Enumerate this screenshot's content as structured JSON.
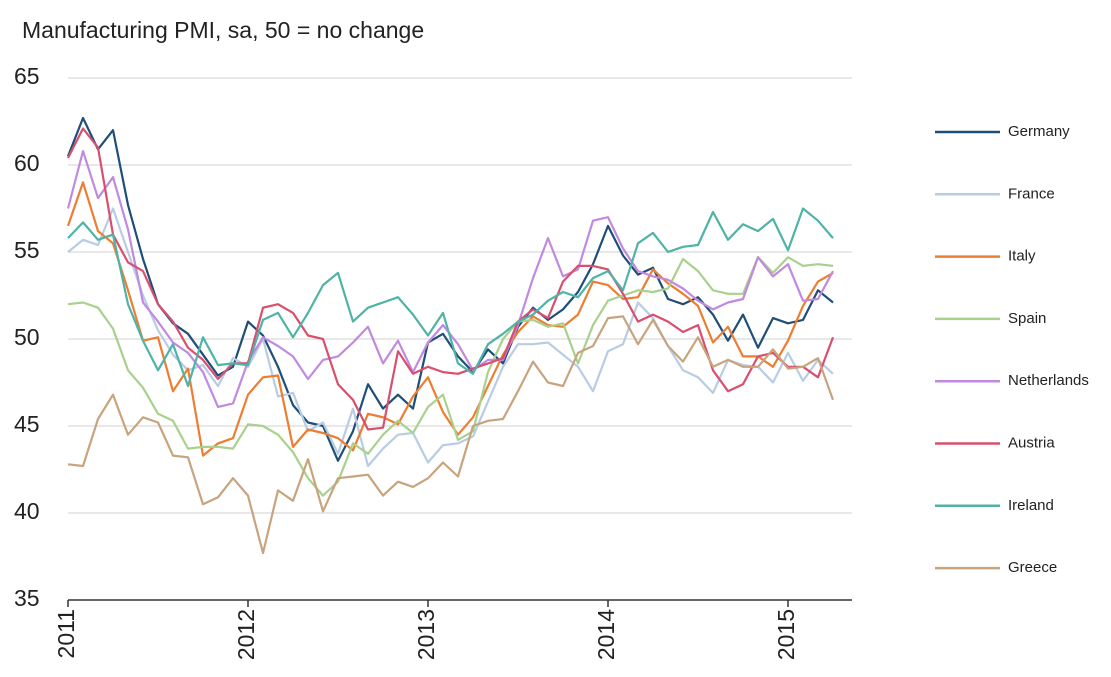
{
  "chart_data": {
    "type": "line",
    "title": "Manufacturing PMI, sa, 50 = no change",
    "x": [
      2011,
      2011.0833,
      2011.1667,
      2011.25,
      2011.3333,
      2011.4167,
      2011.5,
      2011.5833,
      2011.6667,
      2011.75,
      2011.8333,
      2011.9167,
      2012,
      2012.0833,
      2012.1667,
      2012.25,
      2012.3333,
      2012.4167,
      2012.5,
      2012.5833,
      2012.6667,
      2012.75,
      2012.8333,
      2012.9167,
      2013,
      2013.0833,
      2013.1667,
      2013.25,
      2013.3333,
      2013.4167,
      2013.5,
      2013.5833,
      2013.6667,
      2013.75,
      2013.8333,
      2013.9167,
      2014,
      2014.0833,
      2014.1667,
      2014.25,
      2014.3333,
      2014.4167,
      2014.5,
      2014.5833,
      2014.6667,
      2014.75,
      2014.8333,
      2014.9167,
      2015,
      2015.0833,
      2015.1667,
      2015.25
    ],
    "xlim": [
      2011,
      2015.3333
    ],
    "xticks": [
      2011,
      2012,
      2013,
      2014,
      2015
    ],
    "ylim": [
      35,
      65
    ],
    "yticks": [
      35,
      40,
      45,
      50,
      55,
      60,
      65
    ],
    "grid": true,
    "legend": "right",
    "series": [
      {
        "name": "Germany",
        "color": "#1f4e79",
        "values": [
          60.5,
          62.7,
          60.9,
          62.0,
          57.7,
          54.6,
          52.0,
          50.9,
          50.3,
          49.1,
          47.9,
          48.4,
          51.0,
          50.2,
          48.4,
          46.2,
          45.2,
          45.0,
          43.0,
          44.7,
          47.4,
          46.0,
          46.8,
          46.0,
          49.8,
          50.3,
          49.0,
          48.1,
          49.4,
          48.6,
          50.7,
          51.8,
          51.1,
          51.7,
          52.7,
          54.3,
          56.5,
          54.8,
          53.7,
          54.1,
          52.3,
          52.0,
          52.4,
          51.4,
          49.9,
          51.4,
          49.5,
          51.2,
          50.9,
          51.1,
          52.8,
          52.1
        ]
      },
      {
        "name": "France",
        "color": "#b8cce4",
        "values": [
          55.0,
          55.7,
          55.4,
          57.5,
          55.0,
          52.5,
          50.5,
          49.1,
          48.2,
          48.5,
          47.3,
          48.9,
          48.4,
          50.0,
          46.7,
          46.9,
          44.7,
          45.2,
          43.4,
          46.0,
          42.7,
          43.7,
          44.5,
          44.6,
          42.9,
          43.9,
          44.0,
          44.4,
          46.4,
          48.4,
          49.7,
          49.7,
          49.8,
          49.1,
          48.4,
          47.0,
          49.3,
          49.7,
          52.1,
          51.2,
          49.6,
          48.2,
          47.8,
          46.9,
          48.8,
          48.5,
          48.4,
          47.5,
          49.2,
          47.6,
          48.8,
          48.0
        ]
      },
      {
        "name": "Italy",
        "color": "#ed7d31",
        "values": [
          56.5,
          59.0,
          56.2,
          55.5,
          52.8,
          49.9,
          50.1,
          47.0,
          48.3,
          43.3,
          44.0,
          44.3,
          46.8,
          47.8,
          47.9,
          43.8,
          44.8,
          44.6,
          44.3,
          43.6,
          45.7,
          45.5,
          45.1,
          46.7,
          47.8,
          45.8,
          44.5,
          45.5,
          47.3,
          49.1,
          50.4,
          51.3,
          50.8,
          50.7,
          51.4,
          53.3,
          53.1,
          52.3,
          52.4,
          54.0,
          53.2,
          52.6,
          51.9,
          49.8,
          50.7,
          49.0,
          49.0,
          48.4,
          49.9,
          51.9,
          53.3,
          53.8
        ]
      },
      {
        "name": "Spain",
        "color": "#a9d18e",
        "values": [
          52.0,
          52.1,
          51.8,
          50.6,
          48.2,
          47.2,
          45.7,
          45.3,
          43.7,
          43.8,
          43.8,
          43.7,
          45.1,
          45.0,
          44.5,
          43.5,
          42.0,
          41.0,
          41.8,
          44.0,
          43.4,
          44.5,
          45.3,
          44.6,
          46.1,
          46.8,
          44.2,
          44.7,
          48.1,
          50.0,
          51.0,
          51.1,
          50.7,
          50.9,
          48.6,
          50.8,
          52.2,
          52.5,
          52.8,
          52.7,
          52.9,
          54.6,
          53.9,
          52.8,
          52.6,
          52.6,
          54.7,
          53.8,
          54.7,
          54.2,
          54.3,
          54.2
        ]
      },
      {
        "name": "Netherlands",
        "color": "#c189e0",
        "values": [
          57.5,
          60.8,
          58.1,
          59.3,
          56.3,
          52.1,
          51.0,
          49.8,
          49.2,
          48.1,
          46.1,
          46.3,
          48.7,
          50.1,
          49.6,
          49.0,
          47.7,
          48.8,
          49.0,
          49.8,
          50.7,
          48.6,
          49.9,
          48.1,
          49.8,
          50.8,
          49.7,
          48.2,
          48.8,
          48.8,
          50.8,
          53.5,
          55.8,
          53.6,
          54.0,
          56.8,
          57.0,
          55.2,
          53.9,
          53.6,
          53.4,
          52.9,
          52.2,
          51.7,
          52.1,
          52.3,
          54.7,
          53.6,
          54.3,
          52.2,
          52.3,
          53.9
        ]
      },
      {
        "name": "Austria",
        "color": "#d94f6e",
        "values": [
          60.4,
          62.1,
          61.0,
          56.0,
          54.4,
          53.9,
          52.0,
          51.0,
          49.5,
          48.8,
          47.7,
          48.6,
          48.6,
          51.8,
          52.0,
          51.5,
          50.2,
          50.0,
          47.4,
          46.5,
          44.8,
          44.9,
          49.3,
          48.0,
          48.4,
          48.1,
          48.0,
          48.3,
          48.6,
          48.9,
          51.0,
          51.7,
          51.2,
          53.3,
          54.2,
          54.2,
          54.0,
          52.6,
          51.0,
          51.4,
          51.0,
          50.4,
          50.8,
          48.2,
          47.0,
          47.4,
          49.0,
          49.2,
          48.4,
          48.4,
          47.8,
          50.1
        ]
      },
      {
        "name": "Ireland",
        "color": "#4fb3a6",
        "values": [
          55.8,
          56.7,
          55.7,
          56.0,
          52.0,
          49.9,
          48.2,
          49.7,
          47.3,
          50.1,
          48.5,
          48.6,
          48.5,
          51.1,
          51.5,
          50.1,
          51.5,
          53.1,
          53.8,
          51.0,
          51.8,
          52.1,
          52.4,
          51.4,
          50.2,
          51.5,
          48.6,
          48.0,
          49.7,
          50.3,
          51.0,
          51.4,
          52.2,
          52.7,
          52.4,
          53.5,
          53.9,
          52.8,
          55.5,
          56.1,
          55.0,
          55.3,
          55.4,
          57.3,
          55.7,
          56.6,
          56.2,
          56.9,
          55.1,
          57.5,
          56.8,
          55.8
        ]
      },
      {
        "name": "Greece",
        "color": "#c8a47e",
        "values": [
          42.8,
          42.7,
          45.4,
          46.8,
          44.5,
          45.5,
          45.2,
          43.3,
          43.2,
          40.5,
          40.9,
          42.0,
          41.0,
          37.7,
          41.3,
          40.7,
          43.1,
          40.1,
          42.0,
          42.1,
          42.2,
          41.0,
          41.8,
          41.5,
          42.0,
          42.9,
          42.1,
          45.0,
          45.3,
          45.4,
          47.0,
          48.7,
          47.5,
          47.3,
          49.2,
          49.6,
          51.2,
          51.3,
          49.7,
          51.1,
          49.6,
          48.7,
          50.1,
          48.4,
          48.8,
          48.4,
          48.4,
          49.4,
          48.3,
          48.4,
          48.9,
          46.5
        ]
      }
    ]
  }
}
